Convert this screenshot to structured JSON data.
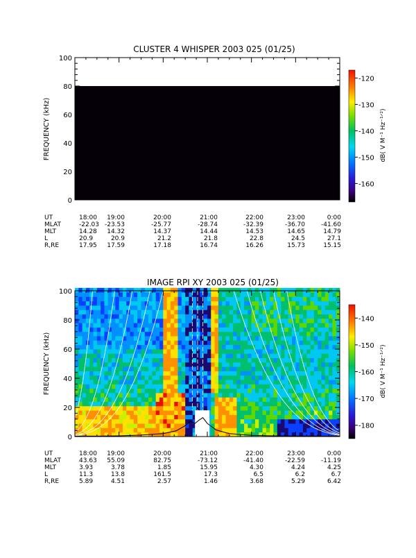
{
  "chart_data": [
    {
      "type": "heatmap",
      "title": "CLUSTER 4 WHISPER 2003 025 (01/25)",
      "ylabel": "FREQUENCY (kHz)",
      "ylim": [
        0,
        100
      ],
      "yticks": [
        "0",
        "20",
        "40",
        "60",
        "80",
        "100"
      ],
      "xlim_hours": [
        18,
        24
      ],
      "data_region": {
        "freq_min": 0,
        "freq_max": 80,
        "value_db": -167
      },
      "colorbar": {
        "label": "dB( V M⁻¹ Hz⁻¹ᐟ²)",
        "range": [
          -167,
          -117
        ],
        "ticks": [
          "-120",
          "-130",
          "-140",
          "-150",
          "-160"
        ],
        "tick_values": [
          -120,
          -130,
          -140,
          -150,
          -160
        ]
      },
      "ephemeris": {
        "labels": [
          "UT",
          "MLAT",
          "MLT",
          "L",
          "R,RE"
        ],
        "columns": [
          [
            "18:00",
            "-22.03",
            "14.28",
            "20.9",
            "17.95"
          ],
          [
            "19:00",
            "-23.53",
            "14.32",
            "20.9",
            "17.59"
          ],
          [
            "20:00",
            "-25.77",
            "14.37",
            "21.2",
            "17.18"
          ],
          [
            "21:00",
            "-28.74",
            "14.44",
            "21.8",
            "16.74"
          ],
          [
            "22:00",
            "-32.39",
            "14.53",
            "22.8",
            "16.26"
          ],
          [
            "23:00",
            "-36.70",
            "14.65",
            "24.5",
            "15.73"
          ],
          [
            "0:00",
            "-41.60",
            "14.79",
            "27.1",
            "15.15"
          ]
        ]
      }
    },
    {
      "type": "heatmap",
      "title": "IMAGE RPI XY 2003 025 (01/25)",
      "ylabel": "FREQUENCY (kHz)",
      "ylim": [
        0,
        100
      ],
      "yticks": [
        "0",
        "20",
        "40",
        "60",
        "80",
        "100"
      ],
      "xlim_hours": [
        18,
        24
      ],
      "colorbar": {
        "label": "dB( V M⁻¹ Hz⁻¹ᐟ²)",
        "range": [
          -185,
          -135
        ],
        "ticks": [
          "-140",
          "-150",
          "-160",
          "-170",
          "-180"
        ],
        "tick_values": [
          -140,
          -150,
          -160,
          -170,
          -180
        ]
      },
      "plasma_frequency_curve": {
        "x_hours": [
          18.0,
          18.5,
          19.0,
          19.5,
          20.0,
          20.3,
          20.5,
          20.62,
          20.72,
          20.8,
          20.9,
          21.0,
          21.2,
          21.5,
          22.0,
          22.5,
          23.0,
          23.5,
          24.0
        ],
        "freq_khz": [
          0.3,
          0.3,
          0.5,
          1.0,
          2.0,
          4.0,
          7.5,
          10.5,
          9.0,
          11.0,
          13.0,
          9.0,
          4.5,
          2.0,
          0.8,
          0.5,
          0.4,
          0.3,
          0.3
        ]
      },
      "ephemeris": {
        "labels": [
          "UT",
          "MLAT",
          "MLT",
          "L",
          "R,RE"
        ],
        "columns": [
          [
            "18:00",
            "43.63",
            "3.93",
            "11.3",
            "5.89"
          ],
          [
            "19:00",
            "55.09",
            "3.78",
            "13.8",
            "4.51"
          ],
          [
            "20:00",
            "82.75",
            "1.85",
            "161.5",
            "2.57"
          ],
          [
            "21:00",
            "-73.12",
            "15.95",
            "17.3",
            "1.46"
          ],
          [
            "22:00",
            "-41.40",
            "4.30",
            "6.5",
            "3.68"
          ],
          [
            "23:00",
            "-22.59",
            "4.24",
            "6.2",
            "5.29"
          ],
          [
            "0:00",
            "-11.19",
            "4.25",
            "6.7",
            "6.42"
          ]
        ]
      }
    }
  ]
}
